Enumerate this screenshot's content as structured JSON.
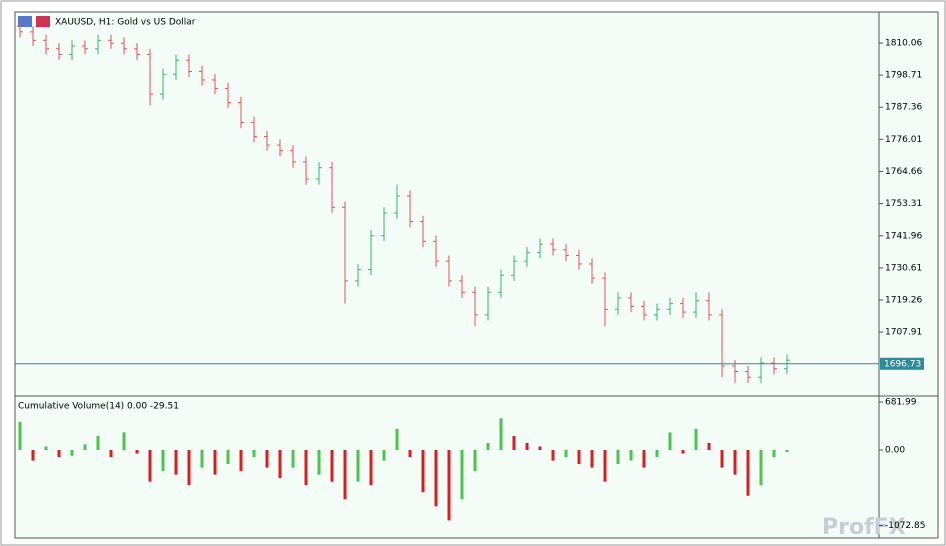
{
  "chart_data": [
    {
      "type": "ohlc",
      "title": "XAUUSD, H1:  Gold vs US Dollar",
      "up_color": "#3cb371",
      "down_color": "#e05555",
      "open": [
        1816,
        1814,
        1811,
        1808,
        1806,
        1809,
        1808,
        1811,
        1810,
        1808,
        1806,
        1792,
        1799,
        1804,
        1800,
        1797,
        1794,
        1789,
        1782,
        1777,
        1774,
        1772,
        1768,
        1762,
        1766,
        1752,
        1726,
        1730,
        1742,
        1750,
        1756,
        1747,
        1740,
        1733,
        1726,
        1722,
        1714,
        1722,
        1728,
        1733,
        1736,
        1739,
        1737,
        1735,
        1732,
        1727,
        1716,
        1720,
        1717,
        1714,
        1716,
        1718,
        1715,
        1719,
        1714,
        1696,
        1694,
        1692,
        1697,
        1695
      ],
      "high": [
        1818,
        1816,
        1813,
        1810,
        1811,
        1811,
        1813,
        1813,
        1812,
        1810,
        1808,
        1801,
        1806,
        1806,
        1802,
        1799,
        1796,
        1791,
        1784,
        1779,
        1776,
        1774,
        1770,
        1768,
        1768,
        1754,
        1732,
        1744,
        1752,
        1760,
        1758,
        1749,
        1742,
        1735,
        1728,
        1724,
        1724,
        1730,
        1735,
        1738,
        1741,
        1741,
        1739,
        1737,
        1734,
        1729,
        1722,
        1722,
        1719,
        1718,
        1720,
        1720,
        1722,
        1722,
        1716,
        1698,
        1696,
        1699,
        1699,
        1700
      ],
      "low": [
        1812,
        1809,
        1806,
        1804,
        1804,
        1806,
        1806,
        1808,
        1806,
        1804,
        1788,
        1790,
        1797,
        1798,
        1795,
        1792,
        1787,
        1780,
        1775,
        1772,
        1770,
        1766,
        1760,
        1760,
        1750,
        1718,
        1724,
        1728,
        1740,
        1748,
        1745,
        1738,
        1731,
        1724,
        1720,
        1710,
        1712,
        1720,
        1726,
        1731,
        1734,
        1735,
        1733,
        1730,
        1725,
        1710,
        1714,
        1715,
        1712,
        1712,
        1714,
        1713,
        1713,
        1712,
        1692,
        1690,
        1690,
        1690,
        1693,
        1693
      ],
      "close": [
        1814,
        1811,
        1808,
        1806,
        1809,
        1808,
        1811,
        1810,
        1808,
        1806,
        1792,
        1799,
        1804,
        1800,
        1797,
        1794,
        1789,
        1782,
        1777,
        1774,
        1772,
        1768,
        1762,
        1766,
        1752,
        1726,
        1730,
        1742,
        1750,
        1756,
        1747,
        1740,
        1733,
        1726,
        1722,
        1714,
        1722,
        1728,
        1733,
        1736,
        1739,
        1737,
        1735,
        1732,
        1727,
        1716,
        1720,
        1717,
        1714,
        1716,
        1718,
        1715,
        1719,
        1714,
        1696,
        1694,
        1692,
        1697,
        1695,
        1698
      ],
      "ylim": [
        1685.7,
        1819.95
      ],
      "yticks": [
        1810.06,
        1798.71,
        1787.36,
        1776.01,
        1764.66,
        1753.31,
        1741.96,
        1730.61,
        1719.26,
        1707.91
      ],
      "current_price": 1696.73,
      "price_line_color": "#2e8b9a"
    },
    {
      "type": "bar",
      "title": "Cumulative Volume(14) 0.00 -29.51",
      "up_color": "#4cc44c",
      "down_color": "#d42020",
      "values": [
        400,
        -150,
        50,
        -100,
        -80,
        80,
        200,
        -100,
        250,
        -50,
        -450,
        -300,
        -350,
        -500,
        -250,
        -350,
        -200,
        -300,
        -100,
        -250,
        -400,
        -250,
        -500,
        -350,
        -450,
        -700,
        -450,
        -500,
        -150,
        300,
        -100,
        -600,
        -800,
        -1000,
        -700,
        -300,
        100,
        450,
        200,
        100,
        50,
        -150,
        -100,
        -200,
        -250,
        -450,
        -200,
        -150,
        -250,
        -100,
        250,
        -50,
        300,
        100,
        -250,
        -350,
        -650,
        -500,
        -100,
        -30
      ],
      "ylim": [
        -1236,
        753
      ],
      "yticks": [
        681.99,
        {
          "value": 0,
          "label": "0.00"
        },
        -1072.85
      ]
    }
  ],
  "watermark": "ProfFX"
}
